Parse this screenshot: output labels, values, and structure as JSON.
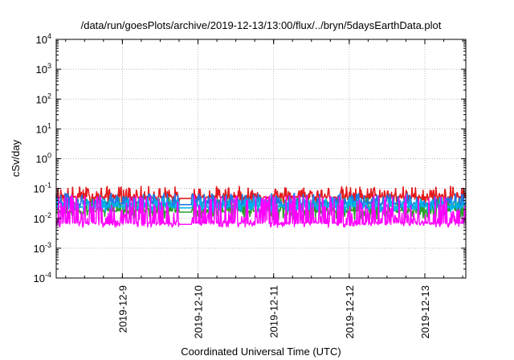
{
  "chart_data": {
    "type": "line",
    "title": "/data/run/goesPlots/archive/2019-12-13/13:00/flux/../bryn/5daysEarthData.plot",
    "xlabel": "Coordinated Universal Time (UTC)",
    "ylabel": "cSv/day",
    "y_scale": "log",
    "ylim": [
      0.0001,
      10000
    ],
    "y_ticks": [
      {
        "value": 0.0001,
        "base": "10",
        "exp": "-4"
      },
      {
        "value": 0.001,
        "base": "10",
        "exp": "-3"
      },
      {
        "value": 0.01,
        "base": "10",
        "exp": "-2"
      },
      {
        "value": 0.1,
        "base": "10",
        "exp": "-1"
      },
      {
        "value": 1,
        "base": "10",
        "exp": "0"
      },
      {
        "value": 10,
        "base": "10",
        "exp": "1"
      },
      {
        "value": 100,
        "base": "10",
        "exp": "2"
      },
      {
        "value": 1000,
        "base": "10",
        "exp": "3"
      },
      {
        "value": 10000,
        "base": "10",
        "exp": "4"
      }
    ],
    "xlim": [
      "2019-12-08T03:00",
      "2019-12-13T13:00"
    ],
    "x_ticks": [
      "2019-12-9",
      "2019-12-10",
      "2019-12-11",
      "2019-12-12",
      "2019-12-13"
    ],
    "x_tick_dates": [
      "2019-12-09T00:00",
      "2019-12-10T00:00",
      "2019-12-11T00:00",
      "2019-12-12T00:00",
      "2019-12-13T00:00"
    ],
    "grid": true,
    "data_gap": [
      "2019-12-09T18:00",
      "2019-12-09T22:00"
    ],
    "series": [
      {
        "color": "#e41a1c",
        "baseline": 0.052,
        "spike_max": 0.12,
        "dip_min": 0.03
      },
      {
        "color": "#2ca02c",
        "baseline": 0.018,
        "spike_max": 0.05,
        "dip_min": 0.009
      },
      {
        "color": "#1f77e4",
        "baseline": 0.032,
        "spike_max": 0.07,
        "dip_min": 0.02
      },
      {
        "color": "#00b2e8",
        "baseline": 0.025,
        "spike_max": 0.05,
        "dip_min": 0.016
      },
      {
        "color": "#ff00ff",
        "baseline": 0.007,
        "spike_max": 0.06,
        "dip_min": 0.005
      }
    ]
  }
}
